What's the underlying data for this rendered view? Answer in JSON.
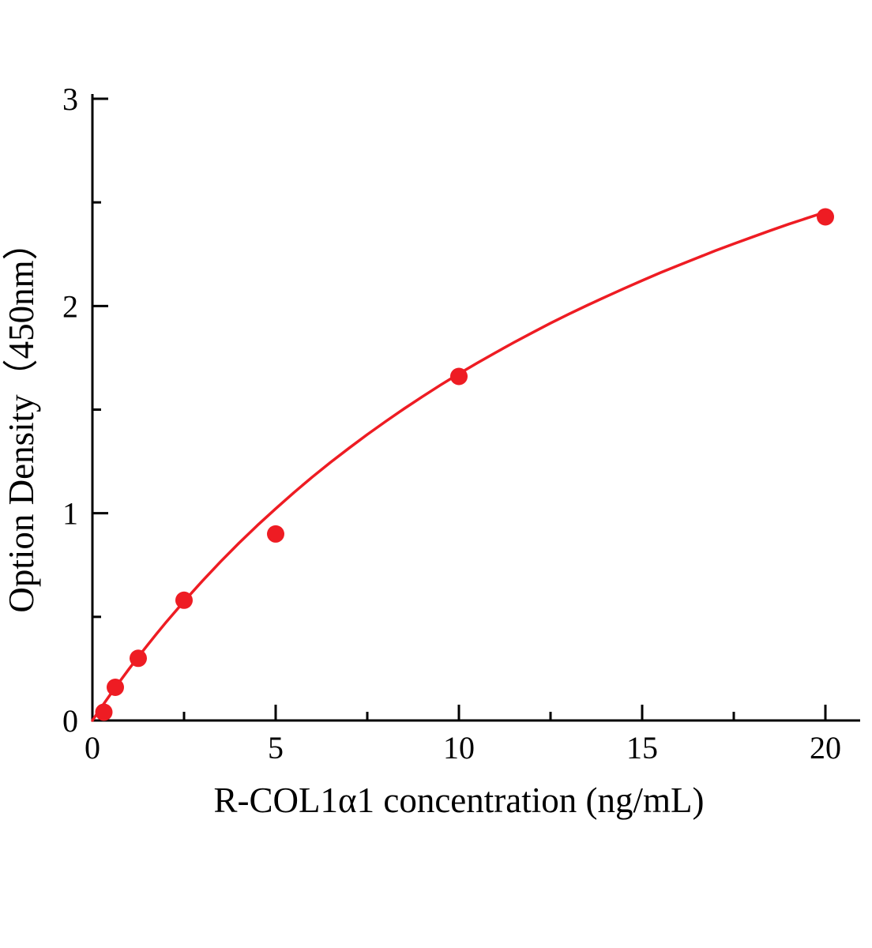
{
  "chart_data": {
    "type": "scatter",
    "title": "",
    "xlabel": "R-COL1α1 concentration (ng/mL)",
    "ylabel": "Option Density（450nm）",
    "xlim": [
      0,
      21
    ],
    "ylim": [
      0,
      3
    ],
    "x_ticks": [
      0,
      5,
      10,
      15,
      20
    ],
    "y_ticks": [
      0,
      1,
      2,
      3
    ],
    "x_tick_labels": [
      "0",
      "5",
      "10",
      "15",
      "20"
    ],
    "y_tick_labels": [
      "0",
      "1",
      "2",
      "3"
    ],
    "x_minor_ticks": [
      2.5,
      7.5,
      12.5,
      17.5
    ],
    "y_minor_ticks": [
      0.5,
      1.5,
      2.5
    ],
    "grid": false,
    "legend_position": "none",
    "point_color": "#ee1c23",
    "line_color": "#ee1c23",
    "axis_color": "#000000",
    "points": {
      "x": [
        0.3125,
        0.625,
        1.25,
        2.5,
        5,
        10,
        20
      ],
      "y": [
        0.04,
        0.16,
        0.3,
        0.58,
        0.9,
        1.66,
        2.43
      ]
    },
    "fit_curve": {
      "x": [
        0,
        0.25,
        0.5,
        0.75,
        1,
        1.25,
        1.5,
        1.75,
        2,
        2.5,
        3,
        3.5,
        4,
        4.5,
        5,
        5.5,
        6,
        6.5,
        7,
        7.5,
        8,
        8.5,
        9,
        9.5,
        10,
        10.5,
        11,
        11.5,
        12,
        12.5,
        13,
        13.5,
        14,
        14.5,
        15,
        15.5,
        16,
        16.5,
        17,
        17.5,
        18,
        18.5,
        19,
        19.5,
        20
      ],
      "y": [
        0,
        0.065,
        0.128,
        0.189,
        0.249,
        0.307,
        0.363,
        0.418,
        0.472,
        0.575,
        0.673,
        0.767,
        0.856,
        0.941,
        1.022,
        1.1,
        1.175,
        1.246,
        1.314,
        1.38,
        1.443,
        1.504,
        1.562,
        1.619,
        1.673,
        1.725,
        1.775,
        1.824,
        1.871,
        1.917,
        1.961,
        2.003,
        2.044,
        2.084,
        2.123,
        2.161,
        2.197,
        2.232,
        2.267,
        2.3,
        2.332,
        2.364,
        2.395,
        2.424,
        2.453
      ]
    }
  }
}
